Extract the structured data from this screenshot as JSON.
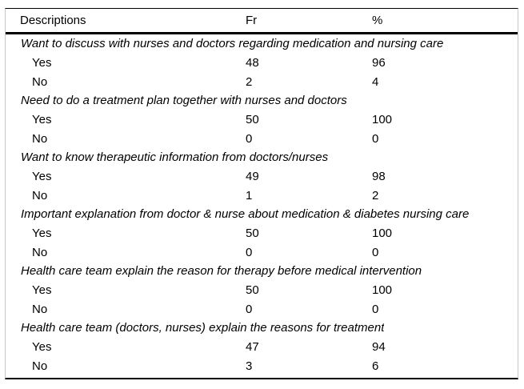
{
  "table": {
    "columns": [
      "Descriptions",
      "Fr",
      "%"
    ],
    "sections": [
      {
        "description": "Want to discuss with nurses and doctors regarding medication and nursing care",
        "rows": [
          {
            "label": "Yes",
            "fr": "48",
            "pct": "96"
          },
          {
            "label": "No",
            "fr": "2",
            "pct": "4"
          }
        ]
      },
      {
        "description": "Need to do a treatment plan together with nurses and doctors",
        "rows": [
          {
            "label": "Yes",
            "fr": "50",
            "pct": "100"
          },
          {
            "label": "No",
            "fr": "0",
            "pct": "0"
          }
        ]
      },
      {
        "description": "Want to know therapeutic information from doctors/nurses",
        "rows": [
          {
            "label": "Yes",
            "fr": "49",
            "pct": "98"
          },
          {
            "label": "No",
            "fr": "1",
            "pct": "2"
          }
        ]
      },
      {
        "description": "Important explanation from doctor & nurse about medication & diabetes nursing care",
        "rows": [
          {
            "label": "Yes",
            "fr": "50",
            "pct": "100"
          },
          {
            "label": "No",
            "fr": "0",
            "pct": "0"
          }
        ]
      },
      {
        "description": "Health care team explain the reason for therapy before medical intervention",
        "rows": [
          {
            "label": "Yes",
            "fr": "50",
            "pct": "100"
          },
          {
            "label": "No",
            "fr": "0",
            "pct": "0"
          }
        ]
      },
      {
        "description": "Health care team (doctors, nurses) explain the reasons for treatment",
        "rows": [
          {
            "label": "Yes",
            "fr": "47",
            "pct": "94"
          },
          {
            "label": "No",
            "fr": "3",
            "pct": "6"
          }
        ]
      }
    ]
  },
  "colors": {
    "text": "#000000",
    "rule": "#000000",
    "side_border": "#c9c9c9",
    "background": "#ffffff"
  }
}
